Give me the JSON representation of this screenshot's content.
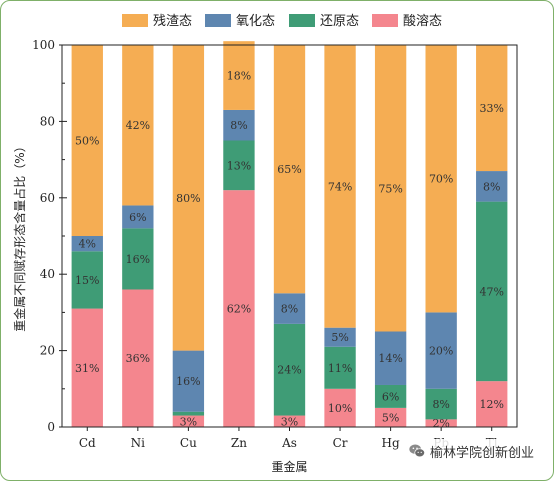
{
  "chart_data": {
    "type": "bar",
    "stacked": true,
    "categories": [
      "Cd",
      "Ni",
      "Cu",
      "Zn",
      "As",
      "Cr",
      "Hg",
      "Pb",
      "Tl"
    ],
    "series": [
      {
        "name": "酸溶态",
        "color": "#f4868e",
        "values": [
          31,
          36,
          3,
          62,
          3,
          10,
          5,
          2,
          12
        ],
        "labels": [
          "31%",
          "36%",
          "3%",
          "62%",
          "3%",
          "10%",
          "5%",
          "2%",
          "12%"
        ]
      },
      {
        "name": "还原态",
        "color": "#3f9c76",
        "values": [
          15,
          16,
          1,
          13,
          24,
          11,
          6,
          8,
          47
        ],
        "labels": [
          "15%",
          "16%",
          "",
          "13%",
          "24%",
          "11%",
          "6%",
          "8%",
          "47%"
        ]
      },
      {
        "name": "氧化态",
        "color": "#5e86b0",
        "values": [
          4,
          6,
          16,
          8,
          8,
          5,
          14,
          20,
          8
        ],
        "labels": [
          "4%",
          "6%",
          "16%",
          "8%",
          "8%",
          "5%",
          "14%",
          "20%",
          "8%"
        ]
      },
      {
        "name": "残渣态",
        "color": "#f5ad53",
        "values": [
          50,
          42,
          80,
          18,
          65,
          74,
          75,
          70,
          33
        ],
        "labels": [
          "50%",
          "42%",
          "80%",
          "18%",
          "65%",
          "74%",
          "75%",
          "70%",
          "33%"
        ]
      }
    ],
    "legend_order": [
      "残渣态",
      "氧化态",
      "还原态",
      "酸溶态"
    ],
    "xlabel": "重金属",
    "ylabel": "重金属不同赋存形态含量占比（%）",
    "ylim": [
      0,
      100
    ],
    "yticks": [
      0,
      20,
      40,
      60,
      80,
      100
    ],
    "legend_position": "top"
  },
  "watermark": {
    "text": "榆林学院创新创业",
    "icon": "wechat-icon"
  }
}
